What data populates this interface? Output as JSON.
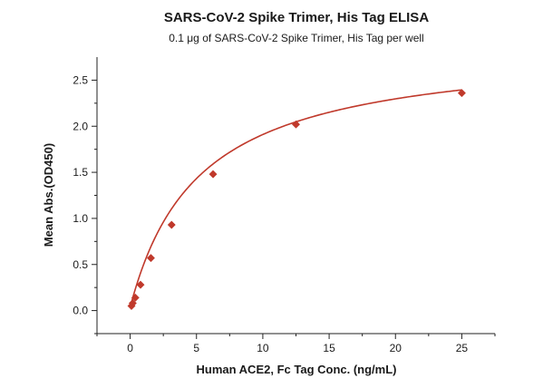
{
  "chart_data": {
    "type": "scatter",
    "title": "SARS-CoV-2 Spike Trimer, His Tag  ELISA",
    "subtitle": "0.1 μg of SARS-CoV-2 Spike Trimer, His Tag  per well",
    "xlabel": "Human ACE2, Fc Tag Conc. (ng/mL)",
    "ylabel": "Mean Abs.(OD450)",
    "xlim": [
      -2.5,
      27.5
    ],
    "ylim": [
      -0.25,
      2.75
    ],
    "xticks": [
      0,
      5,
      10,
      15,
      20,
      25
    ],
    "yticks": [
      0.0,
      0.5,
      1.0,
      1.5,
      2.0,
      2.5
    ],
    "xtick_labels": [
      "0",
      "5",
      "10",
      "15",
      "20",
      "25"
    ],
    "ytick_labels": [
      "0.0",
      "0.5",
      "1.0",
      "1.5",
      "2.0",
      "2.5"
    ],
    "grid": false,
    "series": [
      {
        "x": [
          0.098,
          0.195,
          0.391,
          0.781,
          1.563,
          3.125,
          6.25,
          12.5,
          25
        ],
        "y": [
          0.05,
          0.08,
          0.14,
          0.28,
          0.57,
          0.93,
          1.48,
          2.02,
          2.36
        ],
        "color": "#c0392b",
        "marker": "diamond",
        "fit_curve": true
      }
    ]
  }
}
